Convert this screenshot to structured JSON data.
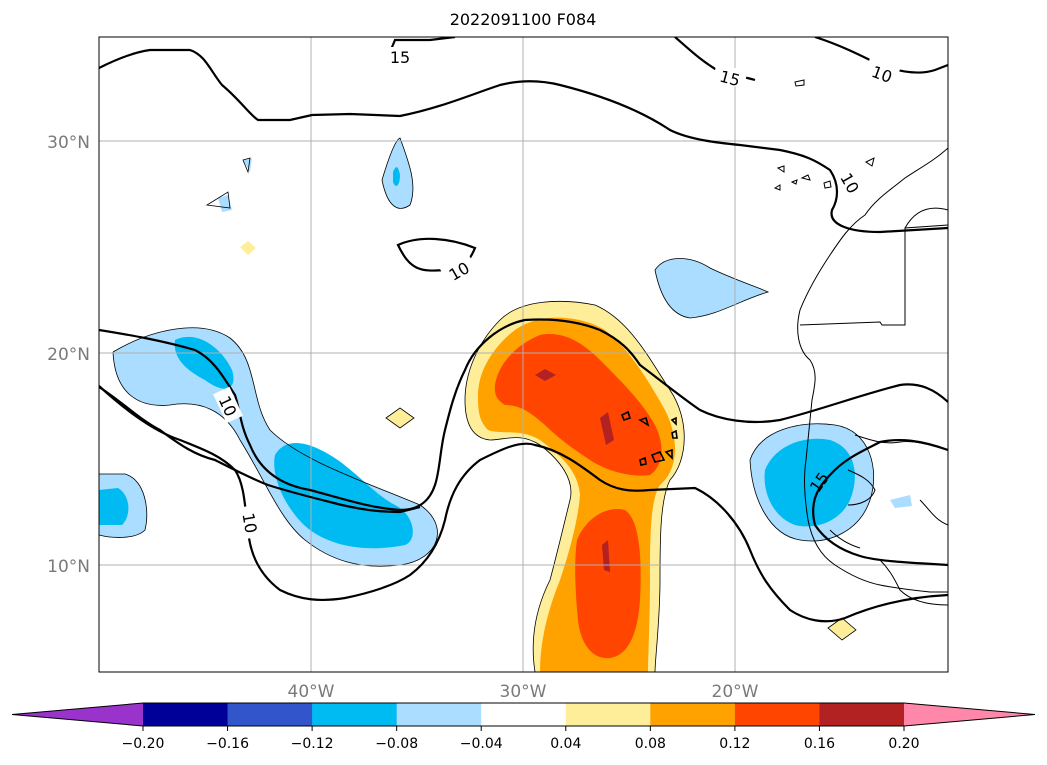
{
  "title": "2022091100 F084",
  "gridlines": true,
  "lat_labels": [
    "30°N",
    "20°N",
    "10°N"
  ],
  "lon_labels": [
    "40°W",
    "30°W",
    "20°W"
  ],
  "contour_labels": [
    "15",
    "15",
    "10",
    "10",
    "10",
    "10",
    "10",
    "15"
  ],
  "colorbar": {
    "extend": "both",
    "ticks": [
      "−0.20",
      "−0.16",
      "−0.12",
      "−0.08",
      "−0.04",
      "0.04",
      "0.08",
      "0.12",
      "0.16",
      "0.20"
    ],
    "colors": [
      "#9933cc",
      "#000099",
      "#3355cc",
      "#00bbf2",
      "#aaddff",
      "#ffffff",
      "#ffee99",
      "#ffa200",
      "#ff4500",
      "#b22222",
      "#ff88aa"
    ]
  },
  "fill_colors": {
    "light_blue": "#aaddff",
    "blue": "#00bbf2",
    "yellow": "#ffee99",
    "orange": "#ffa200",
    "red_orange": "#ff4500",
    "dark_red": "#b22222"
  }
}
